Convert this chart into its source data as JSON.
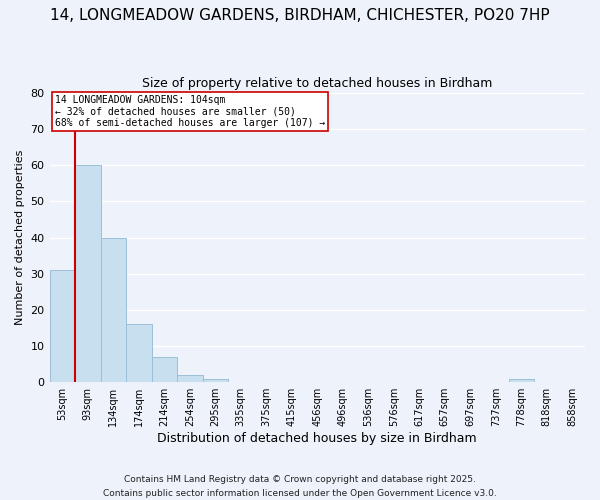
{
  "title": "14, LONGMEADOW GARDENS, BIRDHAM, CHICHESTER, PO20 7HP",
  "subtitle": "Size of property relative to detached houses in Birdham",
  "xlabel": "Distribution of detached houses by size in Birdham",
  "ylabel": "Number of detached properties",
  "bar_color": "#c8dff0",
  "bar_edge_color": "#9bbfd8",
  "background_color": "#eef2fa",
  "grid_color": "#ffffff",
  "categories": [
    "53sqm",
    "93sqm",
    "134sqm",
    "174sqm",
    "214sqm",
    "254sqm",
    "295sqm",
    "335sqm",
    "375sqm",
    "415sqm",
    "456sqm",
    "496sqm",
    "536sqm",
    "576sqm",
    "617sqm",
    "657sqm",
    "697sqm",
    "737sqm",
    "778sqm",
    "818sqm",
    "858sqm"
  ],
  "values": [
    31,
    60,
    40,
    16,
    7,
    2,
    1,
    0,
    0,
    0,
    0,
    0,
    0,
    0,
    0,
    0,
    0,
    0,
    1,
    0,
    0
  ],
  "ylim": [
    0,
    80
  ],
  "yticks": [
    0,
    10,
    20,
    30,
    40,
    50,
    60,
    70,
    80
  ],
  "annotation_line1": "14 LONGMEADOW GARDENS: 104sqm",
  "annotation_line2": "← 32% of detached houses are smaller (50)",
  "annotation_line3": "68% of semi-detached houses are larger (107) →",
  "vline_color": "#cc0000",
  "footnote1": "Contains HM Land Registry data © Crown copyright and database right 2025.",
  "footnote2": "Contains public sector information licensed under the Open Government Licence v3.0."
}
